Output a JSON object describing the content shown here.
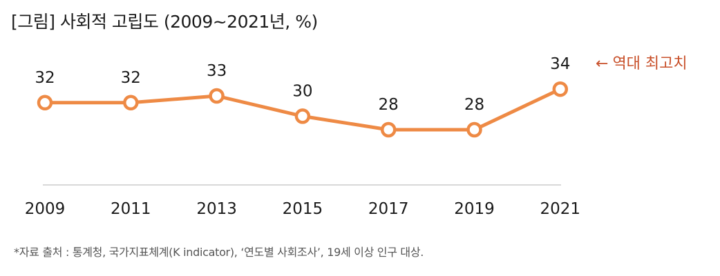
{
  "chart_data": {
    "type": "line",
    "title": "[그림] 사회적 고립도 (2009~2021년, %)",
    "categories": [
      "2009",
      "2011",
      "2013",
      "2015",
      "2017",
      "2019",
      "2021"
    ],
    "series": [
      {
        "values": [
          32,
          32,
          33,
          30,
          28,
          28,
          34
        ]
      }
    ],
    "data_labels": [
      "32",
      "32",
      "33",
      "30",
      "28",
      "28",
      "34"
    ],
    "annotation": {
      "arrow": "←",
      "text": "역대 최고치"
    },
    "source": "*자료 출처 : 통계청, 국가지표체계(K indicator), ‘연도별 사회조사’, 19세 이상 인구 대상.",
    "grid": false,
    "legend": "none",
    "colors": {
      "line": "#ee8a45",
      "marker_fill": "#ffffff",
      "annotation": "#c8502a",
      "axis": "#cccccc"
    }
  }
}
